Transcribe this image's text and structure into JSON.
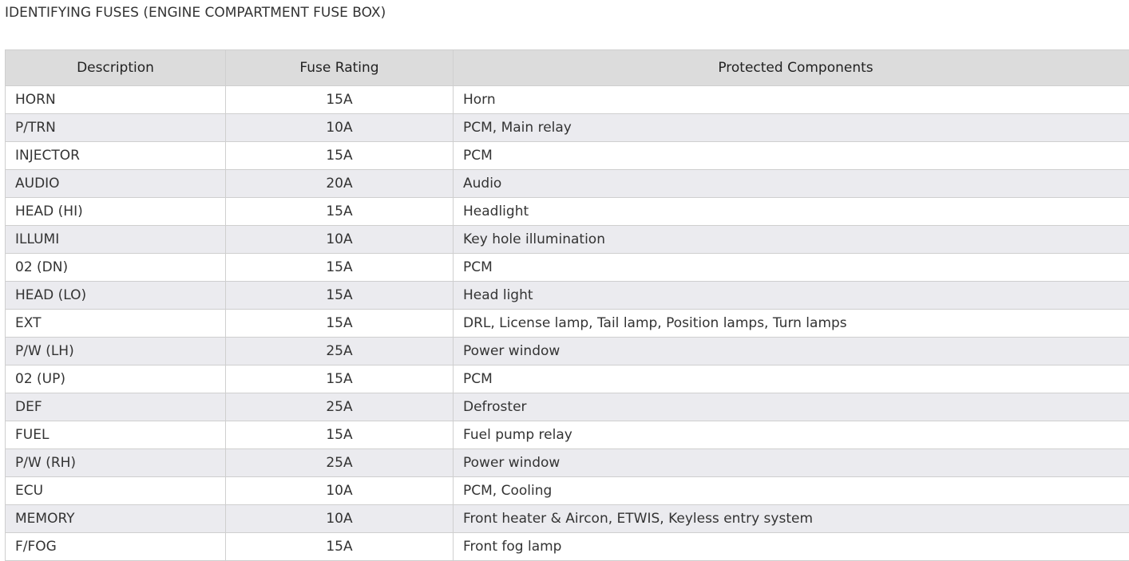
{
  "title": "IDENTIFYING FUSES (ENGINE COMPARTMENT FUSE BOX)",
  "table": {
    "columns": [
      "Description",
      "Fuse Rating",
      "Protected Components"
    ],
    "rows": [
      [
        "HORN",
        "15A",
        "Horn"
      ],
      [
        "P/TRN",
        "10A",
        "PCM, Main relay"
      ],
      [
        "INJECTOR",
        "15A",
        "PCM"
      ],
      [
        "AUDIO",
        "20A",
        "Audio"
      ],
      [
        "HEAD (HI)",
        "15A",
        "Headlight"
      ],
      [
        "ILLUMI",
        "10A",
        "Key hole illumination"
      ],
      [
        "02 (DN)",
        "15A",
        "PCM"
      ],
      [
        "HEAD (LO)",
        "15A",
        "Head light"
      ],
      [
        "EXT",
        "15A",
        "DRL, License lamp, Tail lamp, Position lamps, Turn lamps"
      ],
      [
        "P/W (LH)",
        "25A",
        "Power window"
      ],
      [
        "02 (UP)",
        "15A",
        "PCM"
      ],
      [
        "DEF",
        "25A",
        "Defroster"
      ],
      [
        "FUEL",
        "15A",
        "Fuel pump relay"
      ],
      [
        "P/W (RH)",
        "25A",
        "Power window"
      ],
      [
        "ECU",
        "10A",
        "PCM, Cooling"
      ],
      [
        "MEMORY",
        "10A",
        "Front heater & Aircon, ETWIS, Keyless entry system"
      ],
      [
        "F/FOG",
        "15A",
        "Front fog lamp"
      ]
    ]
  }
}
